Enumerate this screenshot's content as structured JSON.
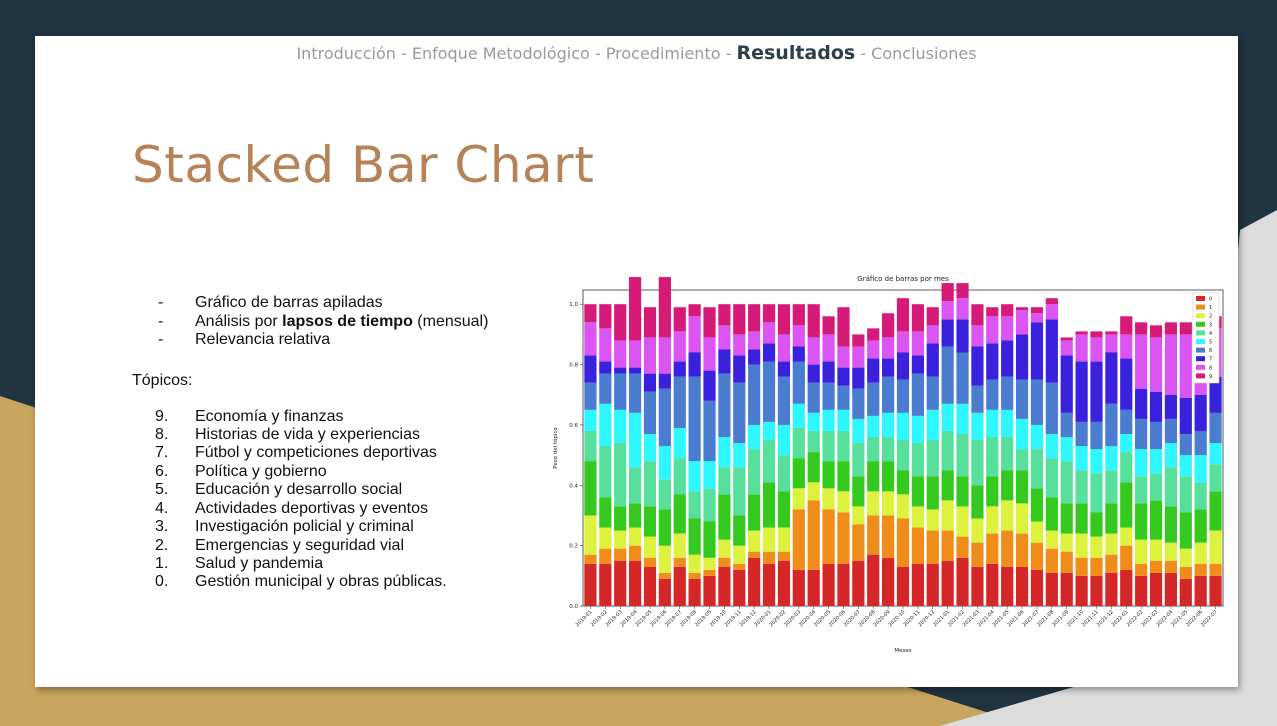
{
  "nav": {
    "items": [
      "Introducción",
      "Enfoque Metodológico",
      "Procedimiento",
      "Resultados",
      "Conclusiones"
    ],
    "separator": "-",
    "current": "Resultados"
  },
  "slide": {
    "title": "Stacked Bar Chart",
    "bullets": [
      {
        "text": "Gráfico de barras apiladas"
      },
      {
        "pre": "Análisis por ",
        "bold": "lapsos de tiempo",
        "post": " (mensual)"
      },
      {
        "text": "Relevancia relativa"
      }
    ],
    "bullet_marker": "-",
    "topics_heading": "Tópicos:",
    "topics": [
      {
        "num": "9.",
        "label": "Economía y finanzas"
      },
      {
        "num": "8.",
        "label": "Historias de vida y experiencias"
      },
      {
        "num": "7.",
        "label": "Fútbol y competiciones deportivas"
      },
      {
        "num": "6.",
        "label": "Política y gobierno"
      },
      {
        "num": "5.",
        "label": "Educación y desarrollo social"
      },
      {
        "num": "4.",
        "label": "Actividades deportivas y eventos"
      },
      {
        "num": "3.",
        "label": "Investigación policial y criminal"
      },
      {
        "num": "2.",
        "label": "Emergencias y seguridad vial"
      },
      {
        "num": "1.",
        "label": "Salud y pandemia"
      },
      {
        "num": "0.",
        "label": "Gestión municipal y obras públicas."
      }
    ]
  },
  "colors": {
    "dark_band": "#1f3440",
    "gold_band": "#c9a45c",
    "gray_band": "#dcdcdc",
    "title": "#b58357",
    "nav_inactive": "#9a9a9a",
    "nav_active": "#2c3e48"
  },
  "chart_data": {
    "type": "bar",
    "stacked": true,
    "title": "Gráfico de barras por mes",
    "xlabel": "Meses",
    "ylabel": "Peso del tópico",
    "ylim": [
      0,
      1.0
    ],
    "yticks": [
      "0.0",
      "0.2",
      "0.4",
      "0.6",
      "0.8",
      "1.0"
    ],
    "legend_position": "top-right",
    "categories": [
      "2019-01",
      "2019-02",
      "2019-03",
      "2019-04",
      "2019-05",
      "2019-06",
      "2019-07",
      "2019-08",
      "2019-09",
      "2019-10",
      "2019-11",
      "2019-12",
      "2020-01",
      "2020-02",
      "2020-03",
      "2020-04",
      "2020-05",
      "2020-06",
      "2020-07",
      "2020-08",
      "2020-09",
      "2020-10",
      "2020-11",
      "2020-12",
      "2021-01",
      "2021-02",
      "2021-03",
      "2021-04",
      "2021-05",
      "2021-06",
      "2021-07",
      "2021-08",
      "2021-09",
      "2021-10",
      "2021-11",
      "2021-12",
      "2022-01",
      "2022-02",
      "2022-03",
      "2022-04",
      "2022-05",
      "2022-06",
      "2022-07"
    ],
    "series": [
      {
        "name": "0",
        "color": "#d62728",
        "values": [
          0.14,
          0.14,
          0.15,
          0.15,
          0.13,
          0.09,
          0.13,
          0.09,
          0.1,
          0.13,
          0.12,
          0.16,
          0.14,
          0.15,
          0.12,
          0.12,
          0.14,
          0.14,
          0.15,
          0.17,
          0.16,
          0.13,
          0.14,
          0.14,
          0.15,
          0.16,
          0.13,
          0.14,
          0.13,
          0.13,
          0.12,
          0.11,
          0.11,
          0.1,
          0.1,
          0.11,
          0.12,
          0.1,
          0.11,
          0.11,
          0.09,
          0.1,
          0.1
        ]
      },
      {
        "name": "1",
        "color": "#ef8c1a",
        "values": [
          0.03,
          0.05,
          0.04,
          0.05,
          0.03,
          0.02,
          0.03,
          0.02,
          0.02,
          0.03,
          0.02,
          0.02,
          0.04,
          0.03,
          0.2,
          0.23,
          0.18,
          0.17,
          0.12,
          0.13,
          0.14,
          0.16,
          0.12,
          0.11,
          0.1,
          0.07,
          0.08,
          0.1,
          0.12,
          0.11,
          0.09,
          0.08,
          0.07,
          0.06,
          0.06,
          0.06,
          0.08,
          0.04,
          0.04,
          0.04,
          0.04,
          0.04,
          0.04
        ]
      },
      {
        "name": "2",
        "color": "#ddf23c",
        "values": [
          0.13,
          0.07,
          0.06,
          0.06,
          0.07,
          0.09,
          0.08,
          0.06,
          0.04,
          0.06,
          0.06,
          0.07,
          0.08,
          0.08,
          0.07,
          0.06,
          0.07,
          0.07,
          0.06,
          0.08,
          0.08,
          0.08,
          0.07,
          0.07,
          0.1,
          0.1,
          0.08,
          0.09,
          0.1,
          0.1,
          0.07,
          0.06,
          0.06,
          0.08,
          0.07,
          0.07,
          0.06,
          0.08,
          0.07,
          0.06,
          0.06,
          0.07,
          0.11
        ]
      },
      {
        "name": "3",
        "color": "#35c81f",
        "values": [
          0.18,
          0.1,
          0.08,
          0.08,
          0.1,
          0.12,
          0.13,
          0.12,
          0.12,
          0.15,
          0.1,
          0.12,
          0.15,
          0.12,
          0.1,
          0.1,
          0.09,
          0.1,
          0.1,
          0.1,
          0.1,
          0.08,
          0.1,
          0.11,
          0.1,
          0.1,
          0.11,
          0.1,
          0.1,
          0.11,
          0.11,
          0.11,
          0.1,
          0.1,
          0.08,
          0.1,
          0.15,
          0.12,
          0.13,
          0.12,
          0.12,
          0.11,
          0.13
        ]
      },
      {
        "name": "4",
        "color": "#56e09c",
        "values": [
          0.1,
          0.17,
          0.21,
          0.12,
          0.15,
          0.1,
          0.12,
          0.09,
          0.11,
          0.09,
          0.16,
          0.15,
          0.14,
          0.12,
          0.1,
          0.07,
          0.1,
          0.1,
          0.11,
          0.08,
          0.08,
          0.1,
          0.11,
          0.12,
          0.13,
          0.14,
          0.15,
          0.13,
          0.11,
          0.07,
          0.13,
          0.13,
          0.14,
          0.11,
          0.13,
          0.11,
          0.1,
          0.09,
          0.09,
          0.13,
          0.12,
          0.09,
          0.09
        ]
      },
      {
        "name": "5",
        "color": "#2ef7ff",
        "values": [
          0.07,
          0.14,
          0.11,
          0.18,
          0.09,
          0.11,
          0.1,
          0.1,
          0.09,
          0.1,
          0.08,
          0.08,
          0.06,
          0.1,
          0.08,
          0.06,
          0.07,
          0.07,
          0.08,
          0.07,
          0.08,
          0.09,
          0.09,
          0.1,
          0.09,
          0.1,
          0.09,
          0.09,
          0.09,
          0.1,
          0.08,
          0.08,
          0.08,
          0.08,
          0.08,
          0.08,
          0.06,
          0.09,
          0.08,
          0.08,
          0.07,
          0.09,
          0.07
        ]
      },
      {
        "name": "6",
        "color": "#4a7ccf",
        "values": [
          0.09,
          0.1,
          0.12,
          0.13,
          0.14,
          0.19,
          0.17,
          0.28,
          0.2,
          0.21,
          0.2,
          0.2,
          0.2,
          0.16,
          0.14,
          0.1,
          0.09,
          0.08,
          0.1,
          0.11,
          0.12,
          0.11,
          0.14,
          0.11,
          0.19,
          0.17,
          0.09,
          0.1,
          0.11,
          0.13,
          0.15,
          0.17,
          0.08,
          0.08,
          0.09,
          0.14,
          0.08,
          0.1,
          0.09,
          0.08,
          0.07,
          0.08,
          0.1
        ]
      },
      {
        "name": "7",
        "color": "#3a21de",
        "values": [
          0.09,
          0.04,
          0.02,
          0.02,
          0.06,
          0.05,
          0.05,
          0.08,
          0.1,
          0.08,
          0.09,
          0.05,
          0.06,
          0.05,
          0.05,
          0.06,
          0.07,
          0.06,
          0.07,
          0.08,
          0.06,
          0.09,
          0.06,
          0.11,
          0.09,
          0.11,
          0.13,
          0.12,
          0.12,
          0.15,
          0.19,
          0.21,
          0.19,
          0.2,
          0.2,
          0.17,
          0.17,
          0.1,
          0.1,
          0.08,
          0.12,
          0.12,
          0.12
        ]
      },
      {
        "name": "8",
        "color": "#db55f2",
        "values": [
          0.11,
          0.11,
          0.09,
          0.09,
          0.12,
          0.12,
          0.1,
          0.12,
          0.11,
          0.08,
          0.07,
          0.06,
          0.07,
          0.09,
          0.07,
          0.09,
          0.09,
          0.07,
          0.07,
          0.06,
          0.07,
          0.07,
          0.08,
          0.06,
          0.06,
          0.07,
          0.07,
          0.09,
          0.08,
          0.08,
          0.03,
          0.05,
          0.05,
          0.09,
          0.08,
          0.06,
          0.08,
          0.18,
          0.18,
          0.2,
          0.21,
          0.18,
          0.16
        ]
      },
      {
        "name": "9",
        "color": "#d61a78",
        "values": [
          0.06,
          0.08,
          0.12,
          0.21,
          0.1,
          0.2,
          0.08,
          0.04,
          0.1,
          0.07,
          0.1,
          0.09,
          0.06,
          0.1,
          0.07,
          0.11,
          0.06,
          0.13,
          0.04,
          0.04,
          0.08,
          0.11,
          0.09,
          0.06,
          0.06,
          0.05,
          0.07,
          0.03,
          0.04,
          0.01,
          0.02,
          0.02,
          0.01,
          0.01,
          0.02,
          0.01,
          0.06,
          0.04,
          0.04,
          0.04,
          0.04,
          0.05,
          0.04
        ]
      }
    ]
  }
}
